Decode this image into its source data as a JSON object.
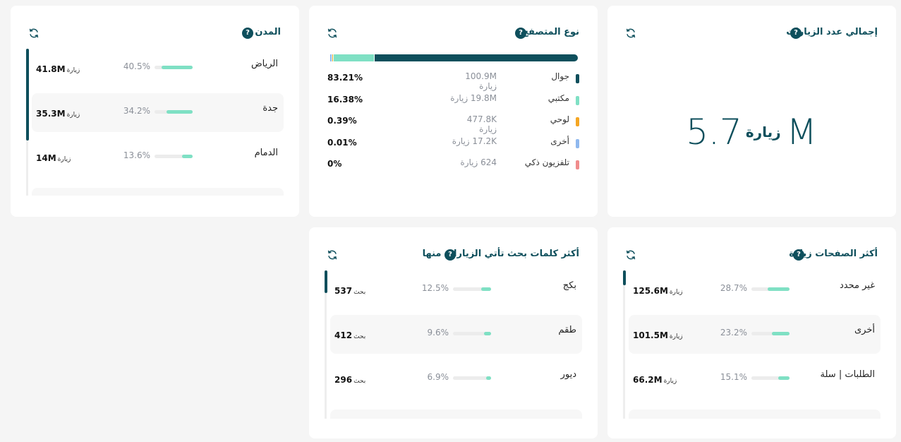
{
  "total_visits": {
    "title": "إجمالي عدد الزيارات",
    "value": "5.7M",
    "unit": "زيارة"
  },
  "browser_type": {
    "title": "نوع المتصفح",
    "colors": {
      "mobile": "#0e4f5c",
      "desktop": "#7fe0c4",
      "tablet": "#f5a623",
      "other": "#8fb8ee",
      "smart_tv": "#f08c8c"
    },
    "rows": [
      {
        "label": "جوال",
        "visits": "100.9M زيارة",
        "pct": "83.21%",
        "share": 83.21,
        "color": "#0e4f5c"
      },
      {
        "label": "مكتبي",
        "visits": "19.8M زيارة",
        "pct": "16.38%",
        "share": 16.38,
        "color": "#7fe0c4"
      },
      {
        "label": "لوحي",
        "visits": "477.8K زيارة",
        "pct": "0.39%",
        "share": 0.39,
        "color": "#f5a623"
      },
      {
        "label": "أخرى",
        "visits": "17.2K زيارة",
        "pct": "0.01%",
        "share": 0.01,
        "color": "#8fb8ee"
      },
      {
        "label": "تلفزيون ذكي",
        "visits": "624 زيارة",
        "pct": "0%",
        "share": 0,
        "color": "#f08c8c"
      }
    ]
  },
  "cities": {
    "title": "المدن",
    "rows": [
      {
        "label": "الرياض",
        "pct": "40.5%",
        "share": 40.5,
        "value": "41.8M",
        "unit": "زيارة"
      },
      {
        "label": "جدة",
        "pct": "34.2%",
        "share": 34.2,
        "value": "35.3M",
        "unit": "زيارة"
      },
      {
        "label": "الدمام",
        "pct": "13.6%",
        "share": 13.6,
        "value": "14M",
        "unit": "زيارة"
      }
    ]
  },
  "top_pages": {
    "title": "أكثر الصفحات زيارة",
    "rows": [
      {
        "label": "غير محدد",
        "pct": "28.7%",
        "share": 28.7,
        "value": "125.6M",
        "unit": "زيارة"
      },
      {
        "label": "أخرى",
        "pct": "23.2%",
        "share": 23.2,
        "value": "101.5M",
        "unit": "زيارة"
      },
      {
        "label": "الطلبات | سلة",
        "pct": "15.1%",
        "share": 15.1,
        "value": "66.2M",
        "unit": "زيارة"
      }
    ]
  },
  "top_keywords": {
    "title": "أكثر كلمات بحث تأتي الزيارات منها",
    "rows": [
      {
        "label": "بكج",
        "pct": "12.5%",
        "share": 12.5,
        "value": "537",
        "unit": "بحث"
      },
      {
        "label": "طقم",
        "pct": "9.6%",
        "share": 9.6,
        "value": "412",
        "unit": "بحث"
      },
      {
        "label": "ديور",
        "pct": "6.9%",
        "share": 6.9,
        "value": "296",
        "unit": "بحث"
      }
    ]
  },
  "help_glyph": "?"
}
